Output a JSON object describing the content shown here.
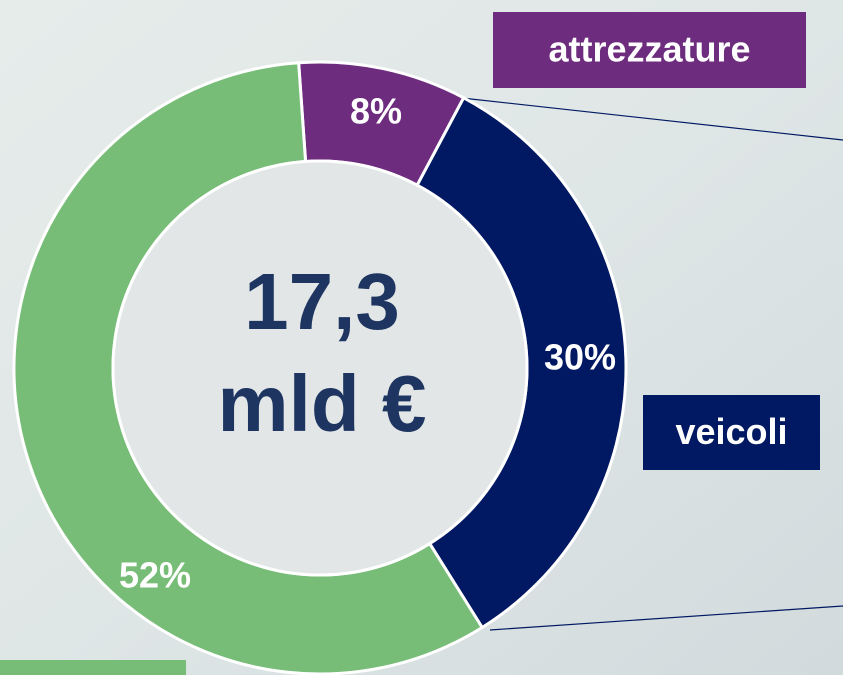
{
  "chart_data": {
    "type": "pie",
    "categories": [
      "attrezzature",
      "veicoli",
      null
    ],
    "values": [
      8,
      30,
      52
    ],
    "value_labels": [
      "8%",
      "30%",
      "52%"
    ],
    "colors": [
      "#6e2c7e",
      "#011862",
      "#77bd78"
    ],
    "center_text": [
      "17,3",
      "mld €"
    ]
  }
}
